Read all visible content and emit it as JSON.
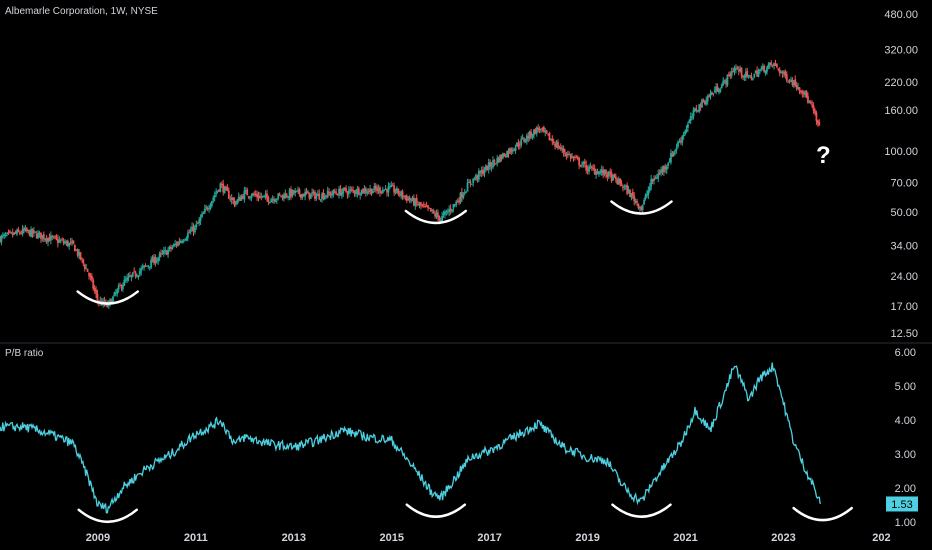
{
  "header": {
    "symbol_title": "Albemarle Corporation, 1W, NYSE"
  },
  "annotation": {
    "question_mark": "?"
  },
  "colors": {
    "background": "#000000",
    "candle_up": "#26a69a",
    "candle_down": "#ef5350",
    "pb_line": "#4dd0e1",
    "badge": "#4dd0e1",
    "divider": "#2a2e39",
    "bowl": "#ffffff"
  },
  "chart_data": [
    {
      "type": "candlestick",
      "title": "Albemarle Corporation, 1W, NYSE",
      "y_scale": "log",
      "y_ticks": [
        "480.00",
        "320.00",
        "220.00",
        "160.00",
        "100.00",
        "70.00",
        "50.00",
        "34.00",
        "24.00",
        "17.00",
        "12.50"
      ],
      "ylim": [
        12.5,
        480
      ],
      "x": [
        2007.0,
        2007.5,
        2008.0,
        2008.5,
        2008.8,
        2009.0,
        2009.2,
        2009.5,
        2010.0,
        2010.5,
        2011.0,
        2011.3,
        2011.5,
        2011.8,
        2012.0,
        2012.5,
        2013.0,
        2013.5,
        2014.0,
        2014.5,
        2015.0,
        2015.5,
        2015.8,
        2016.0,
        2016.3,
        2016.6,
        2017.0,
        2017.5,
        2018.0,
        2018.5,
        2019.0,
        2019.4,
        2019.7,
        2019.9,
        2020.1,
        2020.3,
        2020.6,
        2020.9,
        2021.2,
        2021.5,
        2021.8,
        2022.0,
        2022.3,
        2022.5,
        2022.8,
        2023.0,
        2023.2,
        2023.4,
        2023.6,
        2023.75
      ],
      "close": [
        37,
        40,
        37,
        34,
        25,
        18,
        17,
        22,
        27,
        33,
        42,
        56,
        68,
        55,
        62,
        58,
        62,
        60,
        63,
        64,
        65,
        55,
        50,
        46,
        55,
        70,
        85,
        105,
        130,
        100,
        82,
        77,
        68,
        60,
        52,
        70,
        85,
        115,
        160,
        190,
        220,
        260,
        230,
        250,
        270,
        240,
        220,
        200,
        160,
        125
      ],
      "x_ticks": [
        "2009",
        "2011",
        "2013",
        "2015",
        "2017",
        "2019",
        "2021",
        "2023",
        "202"
      ]
    },
    {
      "type": "line",
      "title": "P/B ratio",
      "ylim": [
        1.0,
        6.0
      ],
      "y_ticks": [
        "6.00",
        "5.00",
        "4.00",
        "3.00",
        "2.00",
        "1.00"
      ],
      "last_value": "1.53",
      "x": [
        2007.0,
        2007.5,
        2008.0,
        2008.5,
        2008.8,
        2009.0,
        2009.2,
        2009.5,
        2010.0,
        2010.5,
        2011.0,
        2011.3,
        2011.5,
        2011.8,
        2012.0,
        2012.5,
        2013.0,
        2013.5,
        2014.0,
        2014.5,
        2015.0,
        2015.5,
        2015.8,
        2016.0,
        2016.3,
        2016.6,
        2017.0,
        2017.5,
        2018.0,
        2018.5,
        2019.0,
        2019.4,
        2019.7,
        2019.9,
        2020.1,
        2020.3,
        2020.6,
        2020.9,
        2021.2,
        2021.5,
        2021.8,
        2022.0,
        2022.3,
        2022.5,
        2022.8,
        2023.0,
        2023.2,
        2023.4,
        2023.6,
        2023.75
      ],
      "values": [
        3.8,
        3.8,
        3.6,
        3.3,
        2.3,
        1.5,
        1.4,
        2.0,
        2.6,
        3.0,
        3.6,
        3.8,
        4.0,
        3.3,
        3.5,
        3.3,
        3.2,
        3.4,
        3.7,
        3.5,
        3.4,
        2.5,
        1.9,
        1.7,
        2.3,
        2.9,
        3.1,
        3.5,
        3.9,
        3.2,
        2.9,
        2.8,
        2.1,
        1.8,
        1.6,
        2.1,
        2.7,
        3.3,
        4.3,
        3.7,
        4.8,
        5.6,
        4.6,
        5.2,
        5.6,
        4.5,
        3.4,
        2.7,
        2.1,
        1.53
      ]
    }
  ]
}
